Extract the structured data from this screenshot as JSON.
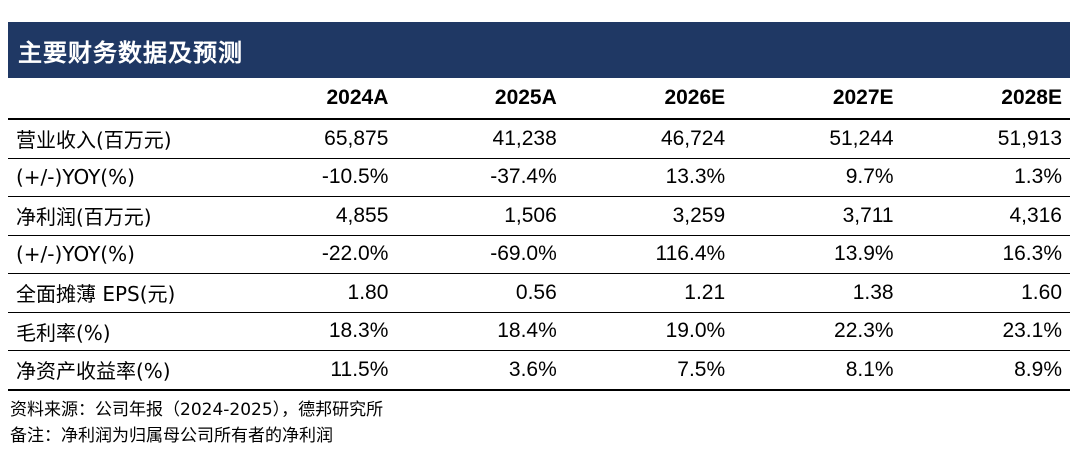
{
  "title": "主要财务数据及预测",
  "columns": [
    "",
    "2024A",
    "2025A",
    "2026E",
    "2027E",
    "2028E"
  ],
  "rows": [
    {
      "label": "营业收入(百万元)",
      "values": [
        "65,875",
        "41,238",
        "46,724",
        "51,244",
        "51,913"
      ]
    },
    {
      "label": "(+/-)YOY(%)",
      "values": [
        "-10.5%",
        "-37.4%",
        "13.3%",
        "9.7%",
        "1.3%"
      ]
    },
    {
      "label": "净利润(百万元)",
      "values": [
        "4,855",
        "1,506",
        "3,259",
        "3,711",
        "4,316"
      ]
    },
    {
      "label": "(+/-)YOY(%)",
      "values": [
        "-22.0%",
        "-69.0%",
        "116.4%",
        "13.9%",
        "16.3%"
      ]
    },
    {
      "label": "全面摊薄 EPS(元)",
      "values": [
        "1.80",
        "0.56",
        "1.21",
        "1.38",
        "1.60"
      ]
    },
    {
      "label": "毛利率(%)",
      "values": [
        "18.3%",
        "18.4%",
        "19.0%",
        "22.3%",
        "23.1%"
      ]
    },
    {
      "label": "净资产收益率(%)",
      "values": [
        "11.5%",
        "3.6%",
        "7.5%",
        "8.1%",
        "8.9%"
      ]
    }
  ],
  "notes": {
    "source": "资料来源：公司年报（2024-2025），德邦研究所",
    "remark": "备注：净利润为归属母公司所有者的净利润"
  }
}
